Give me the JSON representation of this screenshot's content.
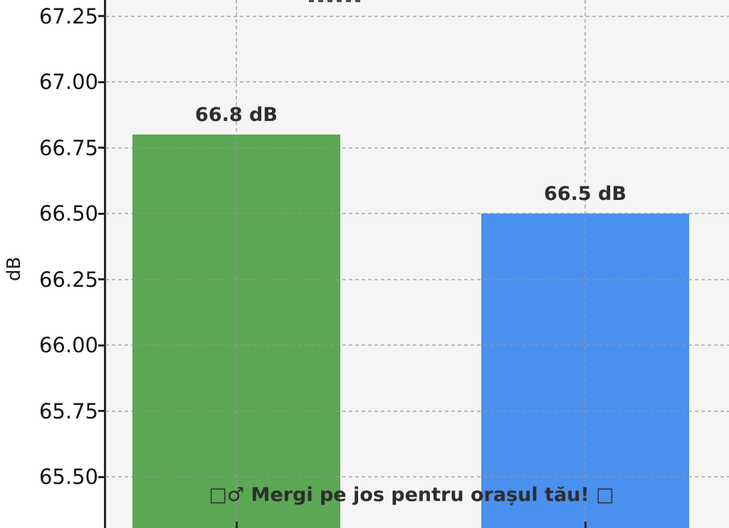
{
  "chart_data": {
    "type": "bar",
    "title": "",
    "ylabel": "dB",
    "categories": [
      "",
      ""
    ],
    "values": [
      66.8,
      66.5
    ],
    "bar_labels": [
      "66.8 dB",
      "66.5 dB"
    ],
    "bar_colors": [
      "#5ca855",
      "#4a90ee"
    ],
    "yticks": [
      67.25,
      67.0,
      66.75,
      66.5,
      66.25,
      66.0,
      65.75,
      65.5
    ],
    "ytick_labels": [
      "67.25",
      "67.00",
      "66.75",
      "66.50",
      "66.25",
      "66.00",
      "65.75",
      "65.50"
    ],
    "ylim": [
      65.306,
      67.312
    ],
    "grid": "dashed",
    "legend": "none",
    "annotation": "□♂ Mergi pe jos pentru orașul tău! □",
    "plot_background": "#f5f5f5",
    "figure_background": "#ffffff",
    "grid_color": "#969696",
    "axis_color": "#262626",
    "label_color": "#2e2e2e"
  }
}
